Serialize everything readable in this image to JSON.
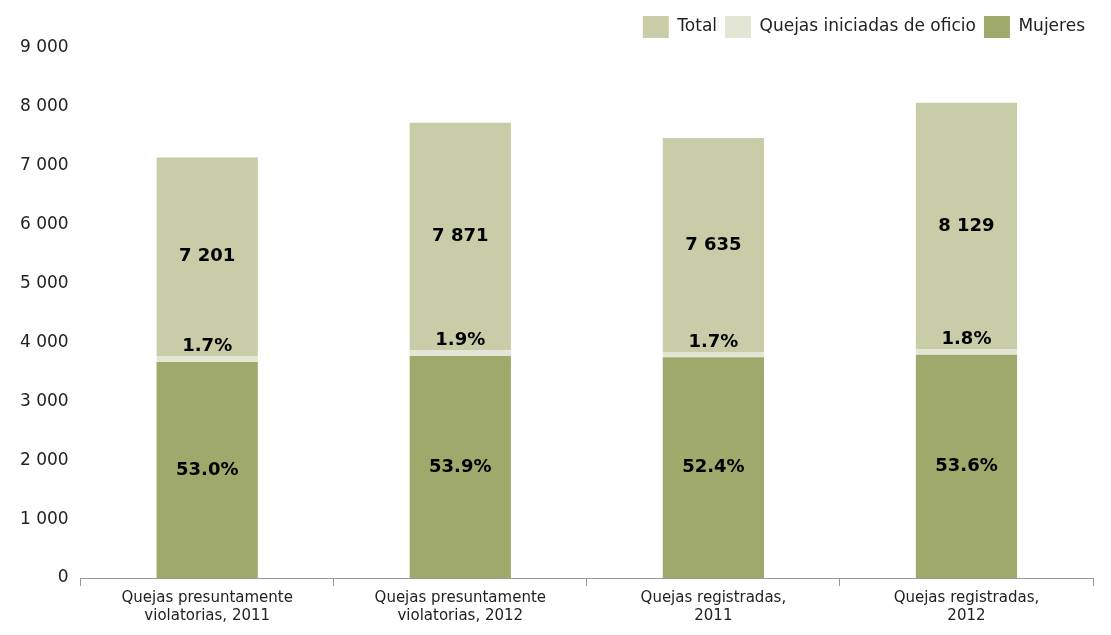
{
  "chart_data": {
    "type": "bar",
    "stacked": true,
    "categories": [
      "Quejas presuntamente violatorias, 2011",
      "Quejas presuntamente violatorias, 2012",
      "Quejas registradas, 2011",
      "Quejas registradas, 2012"
    ],
    "series": [
      {
        "name": "Mujeres",
        "color": "#9fa96b",
        "values": [
          3670,
          3770,
          3750,
          3790
        ]
      },
      {
        "name": "Quejas iniciadas de oficio",
        "color": "#e3e6d4",
        "values": [
          100,
          100,
          80,
          100
        ]
      },
      {
        "name": "Total",
        "color": "#c8cda8",
        "values": [
          3370,
          3860,
          3640,
          4180
        ]
      }
    ],
    "annotations": [
      "53.0%",
      "53.9%",
      "52.4%",
      "53.6%",
      "1.7%",
      "1.9%",
      "1.7%",
      "1.8%",
      "7 201",
      "7 871",
      "7 635",
      "8 129"
    ],
    "ylim": [
      0,
      9000
    ],
    "yticks": [
      0,
      {
        "value": 1000,
        "label": "1 000"
      },
      {
        "value": 2000,
        "label": "2 000"
      },
      {
        "value": 3000,
        "label": "3 000"
      },
      {
        "value": 4000,
        "label": "4 000"
      },
      {
        "value": 5000,
        "label": "5 000"
      },
      {
        "value": 6000,
        "label": "6 000"
      },
      {
        "value": 7000,
        "label": "7 000"
      },
      {
        "value": 8000,
        "label": "8 000"
      },
      {
        "value": 9000,
        "label": "9 000"
      }
    ],
    "grid": false,
    "legend": "top right"
  }
}
